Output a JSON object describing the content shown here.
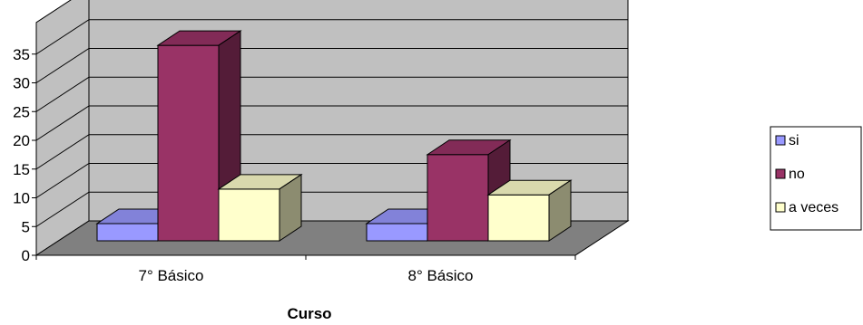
{
  "chart_data": {
    "type": "bar",
    "style": "3d-clustered-column",
    "title": "",
    "xlabel": "Curso",
    "ylabel": "",
    "categories": [
      "7° Básico",
      "8° Básico"
    ],
    "series": [
      {
        "name": "si",
        "values": [
          3,
          3
        ],
        "color": "#9999FF"
      },
      {
        "name": "no",
        "values": [
          34,
          15
        ],
        "color": "#993366"
      },
      {
        "name": "a veces",
        "values": [
          9,
          8
        ],
        "color": "#FFFFCC"
      }
    ],
    "yticks": [
      0,
      5,
      10,
      15,
      20,
      25,
      30,
      35
    ],
    "ylim": [
      0,
      35
    ],
    "grid": true,
    "legend_position": "right",
    "colors": {
      "back_wall": "#C0C0C0",
      "floor": "#808080",
      "gridline": "#000000"
    }
  }
}
